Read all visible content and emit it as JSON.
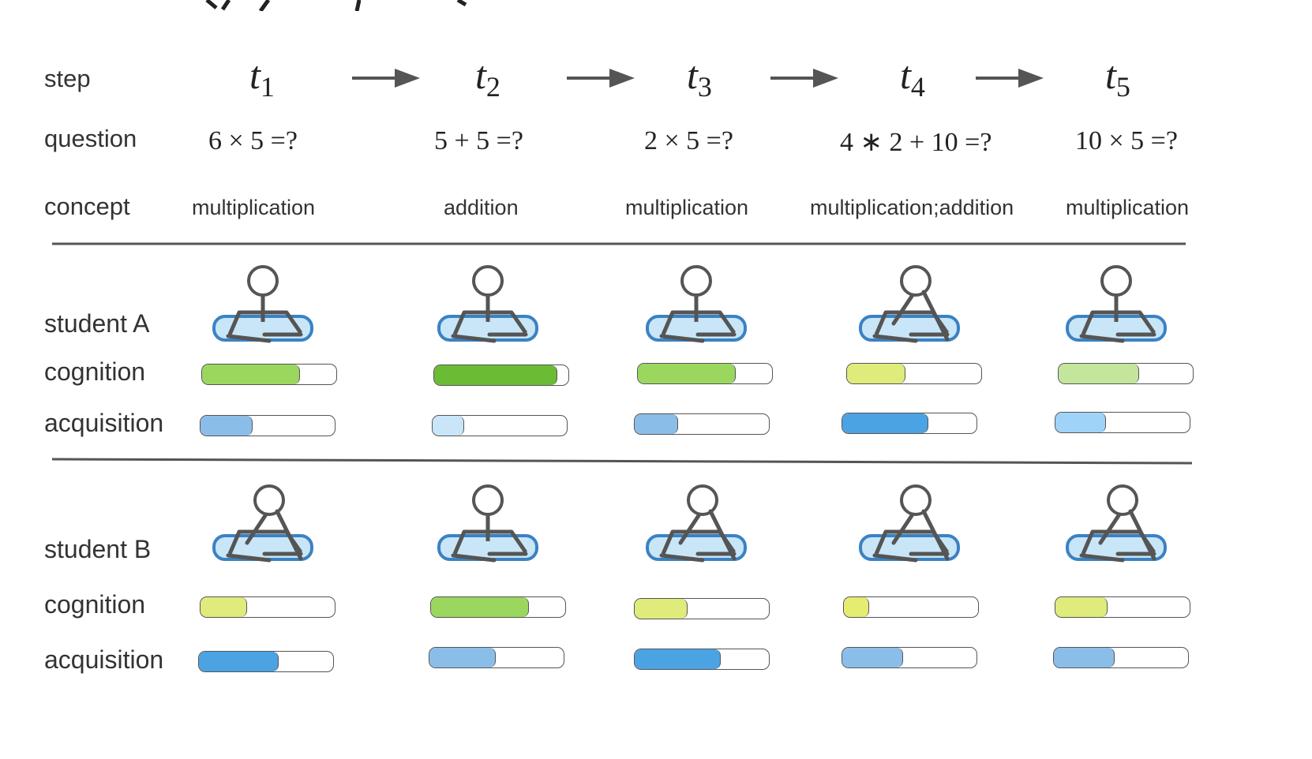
{
  "labels": {
    "step": "step",
    "question": "question",
    "concept": "concept",
    "studentA": "student A",
    "studentB": "student B",
    "cognition": "cognition",
    "acquisition": "acquisition"
  },
  "steps": [
    {
      "letter": "t",
      "index": "1",
      "question": "6 × 5 =?",
      "concept": "multiplication"
    },
    {
      "letter": "t",
      "index": "2",
      "question": "5 + 5 =?",
      "concept": "addition"
    },
    {
      "letter": "t",
      "index": "3",
      "question": "2 × 5 =?",
      "concept": "multiplication"
    },
    {
      "letter": "t",
      "index": "4",
      "question": "4 ∗ 2 + 10 =?",
      "concept": "multiplication;addition"
    },
    {
      "letter": "t",
      "index": "5",
      "question": "10 × 5 =?",
      "concept": "multiplication"
    }
  ],
  "students": {
    "A": {
      "cognition": [
        {
          "level": 0.74,
          "color": "#9bd75e"
        },
        {
          "level": 0.93,
          "color": "#6cbb34"
        },
        {
          "level": 0.74,
          "color": "#9bd75e"
        },
        {
          "level": 0.44,
          "color": "#dfeb7a"
        },
        {
          "level": 0.61,
          "color": "#c4e69c"
        }
      ],
      "acquisition": [
        {
          "level": 0.39,
          "color": "#8bbde9"
        },
        {
          "level": 0.24,
          "color": "#c8e6f7"
        },
        {
          "level": 0.33,
          "color": "#8bbde9"
        },
        {
          "level": 0.65,
          "color": "#4ba3e3"
        },
        {
          "level": 0.38,
          "color": "#9fd3f7"
        }
      ],
      "poses": [
        "still",
        "still",
        "still",
        "writing",
        "still"
      ]
    },
    "B": {
      "cognition": [
        {
          "level": 0.35,
          "color": "#dfeb7a"
        },
        {
          "level": 0.74,
          "color": "#9bd75e"
        },
        {
          "level": 0.4,
          "color": "#dfeb7a"
        },
        {
          "level": 0.19,
          "color": "#e5ed70"
        },
        {
          "level": 0.39,
          "color": "#dfeb7a"
        }
      ],
      "acquisition": [
        {
          "level": 0.6,
          "color": "#4ba3e3"
        },
        {
          "level": 0.5,
          "color": "#8bbde9"
        },
        {
          "level": 0.65,
          "color": "#4ba3e3"
        },
        {
          "level": 0.46,
          "color": "#8bbde9"
        },
        {
          "level": 0.46,
          "color": "#8bbde9"
        }
      ],
      "poses": [
        "writing",
        "still",
        "writing",
        "writing",
        "writing"
      ]
    }
  },
  "colors": {
    "line": "#555555",
    "figure_stroke": "#555555",
    "desk_fill": "#c8e6f7",
    "desk_stroke": "#3b82c4",
    "text": "#333333"
  }
}
